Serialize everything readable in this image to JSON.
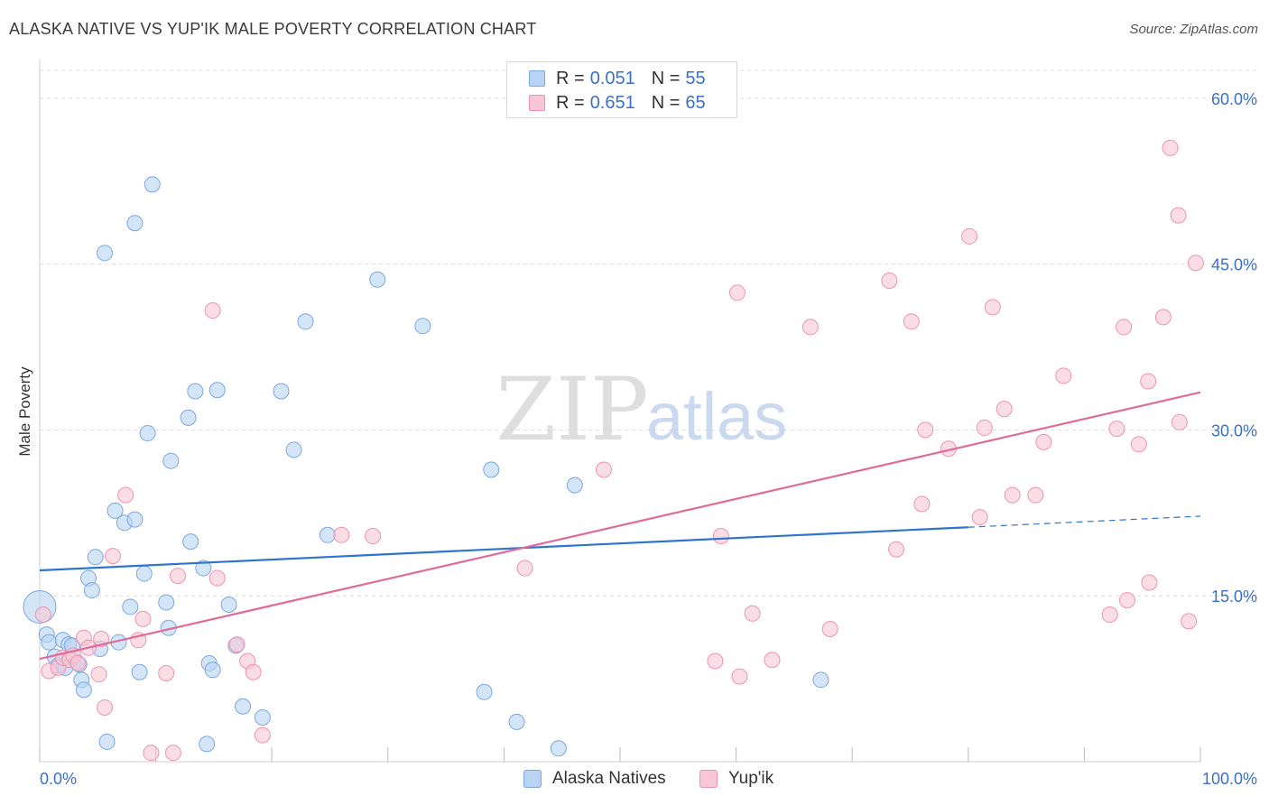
{
  "title": "ALASKA NATIVE VS YUP'IK MALE POVERTY CORRELATION CHART",
  "source": "Source: ZipAtlas.com",
  "watermark": {
    "zip": "ZIP",
    "atlas": "atlas"
  },
  "legend_top": [
    {
      "r_label": "R =",
      "r_value": "0.051",
      "n_label": "N =",
      "n_value": "55"
    },
    {
      "r_label": "R =",
      "r_value": "0.651",
      "n_label": "N =",
      "n_value": "65"
    }
  ],
  "legend_bottom": [
    "Alaska Natives",
    "Yup'ik"
  ],
  "colors": {
    "blue_fill": "#b8d3f3",
    "blue_stroke": "#7aa8e0",
    "blue_line": "#2f74cf",
    "pink_fill": "#f8c6d6",
    "pink_stroke": "#ee93b0",
    "pink_line": "#e06b97",
    "tick_label": "#3a70c7",
    "grid": "#dddddd"
  },
  "chart_data": {
    "type": "scatter",
    "title": "ALASKA NATIVE VS YUP'IK MALE POVERTY CORRELATION CHART",
    "xlabel": "",
    "ylabel": "Male Poverty",
    "xlim": [
      0,
      100
    ],
    "ylim": [
      0,
      63
    ],
    "x_tick_labels": [
      "0.0%",
      "100.0%"
    ],
    "y_ticks": [
      15,
      30,
      45,
      60
    ],
    "y_tick_labels": [
      "15.0%",
      "30.0%",
      "45.0%",
      "60.0%"
    ],
    "grid": "horizontal dashed",
    "series": [
      {
        "name": "Alaska Natives",
        "color": "#b8d3f3",
        "trend": {
          "x": [
            0,
            80
          ],
          "y": [
            17.3,
            21.2
          ],
          "dashed_extension_to_x": 100,
          "dashed_end_y": 22.2
        },
        "points": [
          [
            0,
            14.0,
            "big"
          ],
          [
            0.6,
            11.5
          ],
          [
            0.8,
            10.8
          ],
          [
            2.0,
            11.0
          ],
          [
            2.5,
            10.6
          ],
          [
            2.8,
            10.5
          ],
          [
            1.3,
            9.5
          ],
          [
            1.6,
            8.7
          ],
          [
            2.2,
            8.5
          ],
          [
            3.2,
            9.0
          ],
          [
            3.4,
            8.8
          ],
          [
            3.6,
            7.4
          ],
          [
            3.8,
            6.5
          ],
          [
            4.2,
            16.6
          ],
          [
            4.5,
            15.5
          ],
          [
            4.8,
            18.5
          ],
          [
            5.2,
            10.2
          ],
          [
            5.8,
            1.8
          ],
          [
            6.5,
            22.7
          ],
          [
            6.8,
            10.8
          ],
          [
            7.3,
            21.6
          ],
          [
            7.8,
            14.0
          ],
          [
            8.2,
            21.9
          ],
          [
            8.6,
            8.1
          ],
          [
            9.0,
            17.0
          ],
          [
            9.3,
            29.7
          ],
          [
            9.7,
            52.2
          ],
          [
            5.6,
            46.0
          ],
          [
            8.2,
            48.7
          ],
          [
            10.9,
            14.4
          ],
          [
            11.1,
            12.1
          ],
          [
            11.3,
            27.2
          ],
          [
            12.8,
            31.1
          ],
          [
            13.0,
            19.9
          ],
          [
            13.4,
            33.5
          ],
          [
            14.1,
            17.5
          ],
          [
            14.4,
            1.6
          ],
          [
            14.6,
            8.9
          ],
          [
            14.9,
            8.3
          ],
          [
            15.3,
            33.6
          ],
          [
            16.3,
            14.2
          ],
          [
            16.9,
            10.5
          ],
          [
            17.5,
            5.0
          ],
          [
            19.2,
            4.0
          ],
          [
            20.8,
            33.5
          ],
          [
            21.9,
            28.2
          ],
          [
            22.9,
            39.8
          ],
          [
            24.8,
            20.5
          ],
          [
            29.1,
            43.6
          ],
          [
            33.0,
            39.4
          ],
          [
            38.3,
            6.3
          ],
          [
            38.9,
            26.4
          ],
          [
            41.1,
            3.6
          ],
          [
            44.7,
            1.2
          ],
          [
            46.1,
            25.0
          ],
          [
            67.3,
            7.4
          ]
        ]
      },
      {
        "name": "Yup'ik",
        "color": "#f8c6d6",
        "trend": {
          "x": [
            0,
            100
          ],
          "y": [
            9.3,
            33.4
          ]
        },
        "points": [
          [
            0.3,
            13.3
          ],
          [
            0.8,
            8.2
          ],
          [
            1.6,
            8.5
          ],
          [
            2.0,
            9.4
          ],
          [
            2.6,
            9.2
          ],
          [
            2.9,
            9.6
          ],
          [
            3.3,
            8.9
          ],
          [
            3.8,
            11.2
          ],
          [
            4.2,
            10.3
          ],
          [
            5.1,
            7.9
          ],
          [
            5.3,
            11.1
          ],
          [
            5.6,
            4.9
          ],
          [
            6.3,
            18.6
          ],
          [
            7.4,
            24.1
          ],
          [
            8.5,
            11.0
          ],
          [
            8.9,
            12.9
          ],
          [
            9.6,
            0.8
          ],
          [
            10.9,
            8.0
          ],
          [
            11.5,
            0.8
          ],
          [
            11.9,
            16.8
          ],
          [
            14.9,
            40.8
          ],
          [
            15.3,
            16.6
          ],
          [
            17.0,
            10.6
          ],
          [
            17.9,
            9.1
          ],
          [
            18.4,
            8.1
          ],
          [
            19.2,
            2.4
          ],
          [
            26.0,
            20.5
          ],
          [
            28.7,
            20.4
          ],
          [
            41.8,
            17.5
          ],
          [
            48.6,
            26.4
          ],
          [
            58.2,
            9.1
          ],
          [
            58.7,
            20.4
          ],
          [
            60.1,
            42.4
          ],
          [
            60.3,
            7.7
          ],
          [
            61.4,
            13.4
          ],
          [
            63.1,
            9.2
          ],
          [
            66.4,
            39.3
          ],
          [
            68.1,
            12.0
          ],
          [
            73.2,
            43.5
          ],
          [
            73.8,
            19.2
          ],
          [
            75.1,
            39.8
          ],
          [
            76.0,
            23.3
          ],
          [
            76.3,
            30.0
          ],
          [
            78.3,
            28.3
          ],
          [
            80.1,
            47.5
          ],
          [
            81.4,
            30.2
          ],
          [
            82.1,
            41.1
          ],
          [
            81.0,
            22.1
          ],
          [
            83.1,
            31.9
          ],
          [
            83.8,
            24.1
          ],
          [
            85.8,
            24.1
          ],
          [
            86.5,
            28.9
          ],
          [
            88.2,
            34.9
          ],
          [
            92.2,
            13.3
          ],
          [
            92.8,
            30.1
          ],
          [
            93.4,
            39.3
          ],
          [
            93.7,
            14.6
          ],
          [
            94.7,
            28.7
          ],
          [
            95.5,
            34.4
          ],
          [
            95.6,
            16.2
          ],
          [
            96.8,
            40.2
          ],
          [
            97.4,
            55.5
          ],
          [
            98.1,
            49.4
          ],
          [
            98.2,
            30.7
          ],
          [
            99.0,
            12.7
          ],
          [
            99.6,
            45.1
          ]
        ]
      }
    ]
  }
}
